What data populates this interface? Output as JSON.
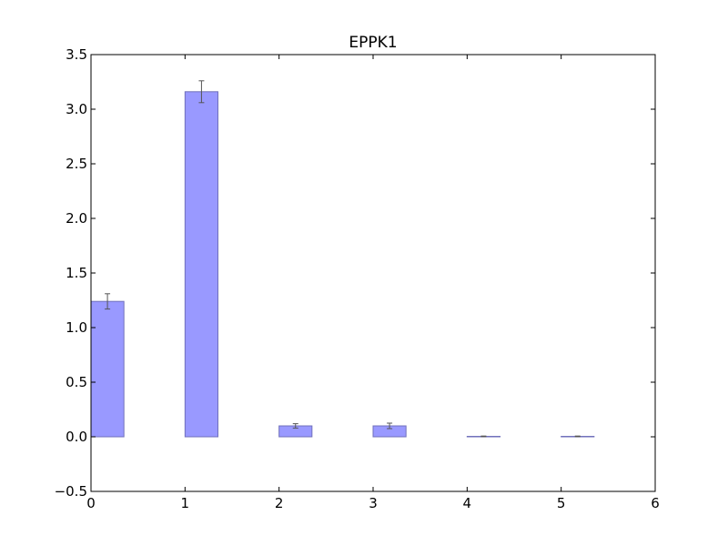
{
  "chart_data": {
    "type": "bar",
    "title": "EPPK1",
    "xlabel": "",
    "ylabel": "",
    "x": [
      0,
      1,
      2,
      3,
      4,
      5
    ],
    "values": [
      1.24,
      3.16,
      0.1,
      0.1,
      0.004,
      0.004
    ],
    "errors": [
      0.07,
      0.1,
      0.02,
      0.025,
      0.003,
      0.003
    ],
    "bar_width": 0.35,
    "xlim": [
      0,
      6
    ],
    "ylim": [
      -0.5,
      3.5
    ],
    "xticks": [
      "0",
      "1",
      "2",
      "3",
      "4",
      "5",
      "6"
    ],
    "yticks": [
      "−0.5",
      "0.0",
      "0.5",
      "1.0",
      "1.5",
      "2.0",
      "2.5",
      "3.0",
      "3.5"
    ],
    "grid": false,
    "bar_color": "#9999ff",
    "bar_edge_color": "#7070bb",
    "error_color": "#555555"
  }
}
